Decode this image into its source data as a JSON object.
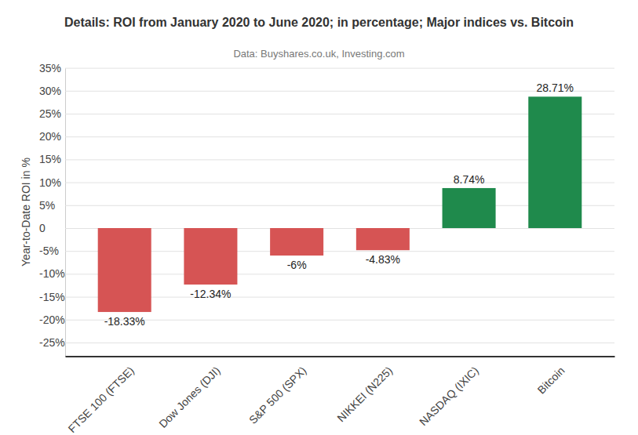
{
  "chart_data": {
    "type": "bar",
    "title": "Details: ROI from January 2020 to June 2020; in percentage; Major indices vs. Bitcoin",
    "subtitle": "Data: Buyshares.co.uk, Investing.com",
    "y_label": "Year-to-Date ROI in %",
    "categories": [
      "FTSE 100 (FTSE)",
      "Dow Jones (DJI)",
      "S&P 500 (SPX)",
      "NIKKEI (N225)",
      "NASDAQ (IXIC)",
      "Bitcoin"
    ],
    "values": [
      -18.33,
      -12.34,
      -6,
      -4.83,
      8.74,
      28.71
    ],
    "value_labels": [
      "-18.33%",
      "-12.34%",
      "-6%",
      "-4.83%",
      "8.74%",
      "28.71%"
    ],
    "colors": [
      "#d65454",
      "#d65454",
      "#d65454",
      "#d65454",
      "#1f8a4c",
      "#1f8a4c"
    ],
    "data_labels": true,
    "grid": true,
    "ylim": [
      -28,
      35
    ],
    "yticks": [
      {
        "value": -25,
        "label": "-25%"
      },
      {
        "value": -20,
        "label": "-20%"
      },
      {
        "value": -15,
        "label": "-15%"
      },
      {
        "value": -10,
        "label": "-10%"
      },
      {
        "value": -5,
        "label": "-5%"
      },
      0,
      {
        "value": 5,
        "label": "5%"
      },
      {
        "value": 10,
        "label": "10%"
      },
      {
        "value": 15,
        "label": "15%"
      },
      {
        "value": 20,
        "label": "20%"
      },
      {
        "value": 25,
        "label": "25%"
      },
      {
        "value": 30,
        "label": "30%"
      },
      {
        "value": 35,
        "label": "35%"
      }
    ]
  }
}
